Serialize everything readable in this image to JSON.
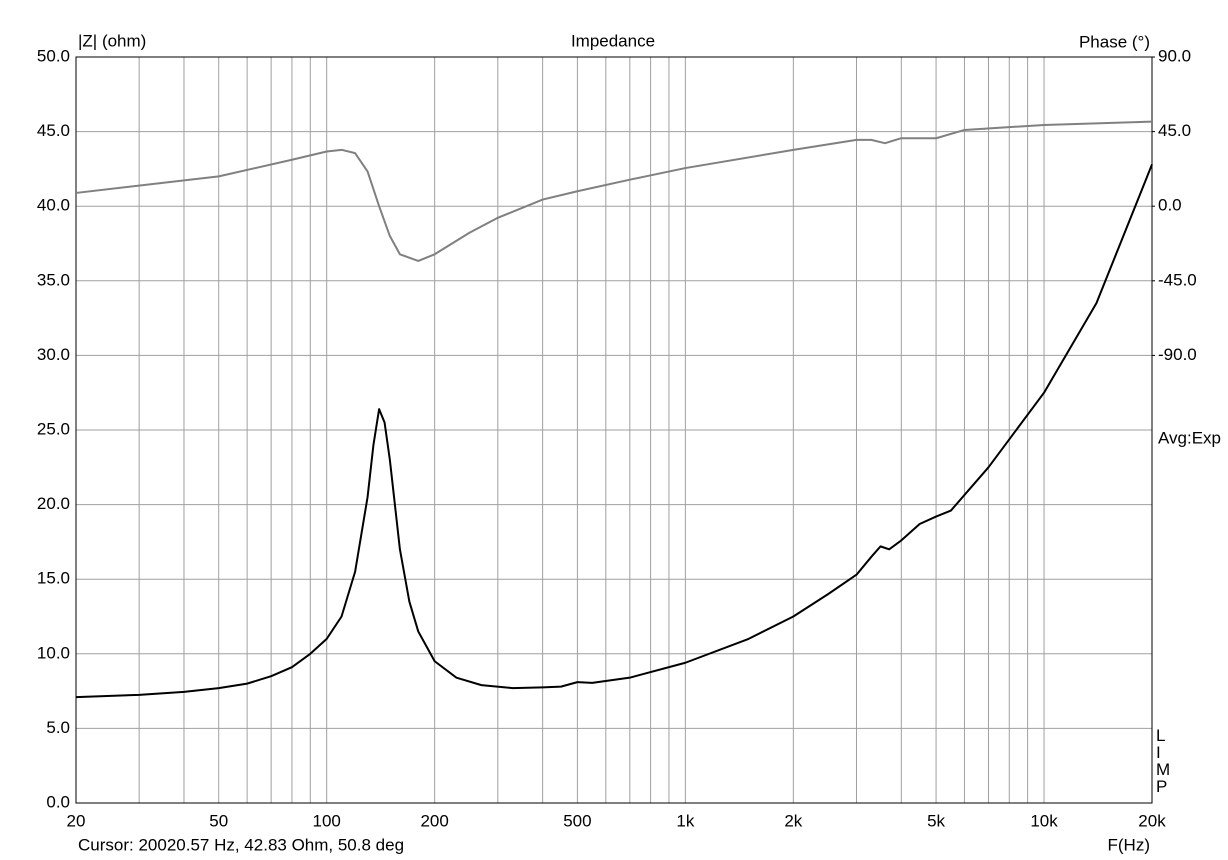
{
  "chart_data": {
    "type": "line",
    "title": "Impedance",
    "y_label": "|Z| (ohm)",
    "y2_label": "Phase (°)",
    "x_label": "F(Hz)",
    "annotations": [
      "Avg:Exp",
      "LIMP",
      "Cursor: 20020.57 Hz, 42.83 Ohm, 50.8 deg"
    ],
    "log_x": true,
    "grid": true,
    "xlim": [
      20,
      20000
    ],
    "xticks": [
      20,
      50,
      100,
      200,
      500,
      {
        "value": 1000,
        "label": "1k"
      },
      {
        "value": 2000,
        "label": "2k"
      },
      {
        "value": 5000,
        "label": "5k"
      },
      {
        "value": 10000,
        "label": "10k"
      },
      {
        "value": 20000,
        "label": "20k"
      }
    ],
    "xminor": [
      30,
      40,
      60,
      70,
      80,
      90,
      300,
      400,
      600,
      700,
      800,
      900,
      3000,
      4000,
      6000,
      7000,
      8000,
      9000
    ],
    "ylim": [
      0,
      50
    ],
    "yticks": [
      {
        "value": 0,
        "label": "0.0"
      },
      {
        "value": 5,
        "label": "5.0"
      },
      {
        "value": 10,
        "label": "10.0"
      },
      {
        "value": 15,
        "label": "15.0"
      },
      {
        "value": 20,
        "label": "20.0"
      },
      {
        "value": 25,
        "label": "25.0"
      },
      {
        "value": 30,
        "label": "30.0"
      },
      {
        "value": 35,
        "label": "35.0"
      },
      {
        "value": 40,
        "label": "40.0"
      },
      {
        "value": 45,
        "label": "45.0"
      },
      {
        "value": 50,
        "label": "50.0"
      }
    ],
    "y2lim": [
      -360,
      90
    ],
    "y2ticks": [
      {
        "value": -90,
        "label": "-90.0"
      },
      {
        "value": -45,
        "label": "-45.0"
      },
      {
        "value": 0,
        "label": "0.0"
      },
      {
        "value": 45,
        "label": "45.0"
      },
      {
        "value": 90,
        "label": "90.0"
      }
    ],
    "series": [
      {
        "color": "#000000",
        "x": [
          20,
          30,
          40,
          50,
          60,
          70,
          80,
          90,
          100,
          110,
          120,
          130,
          135,
          140,
          145,
          150,
          160,
          170,
          180,
          200,
          230,
          270,
          330,
          400,
          450,
          500,
          550,
          700,
          1000,
          1500,
          2000,
          2500,
          3000,
          3300,
          3500,
          3700,
          4000,
          4500,
          5000,
          5500,
          7000,
          10000,
          14000,
          20000
        ],
        "values": [
          7.1,
          7.25,
          7.45,
          7.7,
          8.0,
          8.5,
          9.1,
          10.0,
          11.0,
          12.5,
          15.5,
          20.5,
          24,
          26.4,
          25.5,
          23,
          17,
          13.5,
          11.5,
          9.5,
          8.4,
          7.9,
          7.7,
          7.75,
          7.8,
          8.1,
          8.05,
          8.4,
          9.4,
          11.0,
          12.5,
          14.0,
          15.3,
          16.5,
          17.2,
          17.0,
          17.6,
          18.7,
          19.2,
          19.6,
          22.5,
          27.5,
          33.5,
          42.8
        ]
      },
      {
        "color": "#808080",
        "axis": "y2",
        "x": [
          20,
          50,
          80,
          100,
          110,
          120,
          130,
          140,
          150,
          160,
          180,
          200,
          250,
          300,
          400,
          500,
          700,
          1000,
          2000,
          3000,
          3300,
          3600,
          4000,
          5000,
          6000,
          10000,
          20000
        ],
        "values": [
          8,
          18,
          28,
          33,
          34,
          32,
          21,
          0,
          -18,
          -29,
          -33,
          -29,
          -16,
          -7,
          4,
          9,
          16,
          23,
          34,
          40,
          40,
          38,
          41,
          41,
          46,
          49,
          51
        ]
      }
    ]
  }
}
